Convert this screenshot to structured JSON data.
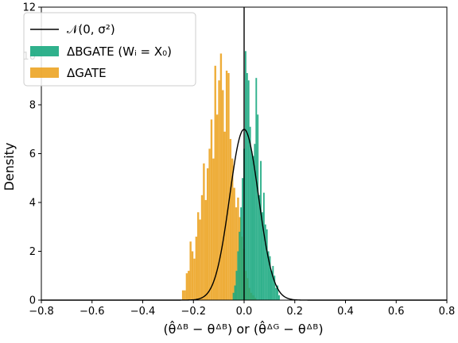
{
  "chart_data": {
    "type": "histogram",
    "xlabel": "(θ̂ᐞᴮ − θᐞᴮ) or (θ̂ᐞᴳ − θᐞᴮ)",
    "ylabel": "Density",
    "xlim": [
      -0.8,
      0.8
    ],
    "ylim": [
      0,
      12
    ],
    "xticks": [
      "−0.8",
      "−0.6",
      "−0.4",
      "−0.2",
      "0.0",
      "0.2",
      "0.4",
      "0.6",
      "0.8"
    ],
    "yticks": [
      "0",
      "2",
      "4",
      "6",
      "8",
      "10",
      "12"
    ],
    "vline_x": 0.0,
    "legend_position": "top-left",
    "legend": {
      "normal": "𝒩(0, σ²)",
      "bgate": "ΔBGATE (Wᵢ = X₀)",
      "gate": "ΔGATE"
    },
    "colors": {
      "bgate": "#1aa97f",
      "gate": "#eb9f16",
      "normal": "#000000"
    },
    "normal_curve": {
      "mean": 0.0,
      "sigma": 0.057
    },
    "series": [
      {
        "name": "ΔGATE",
        "bin_width": 0.0075,
        "bins": [
          [
            -0.245,
            0.4
          ],
          [
            -0.2375,
            0.4
          ],
          [
            -0.23,
            1.1
          ],
          [
            -0.2225,
            1.2
          ],
          [
            -0.215,
            2.4
          ],
          [
            -0.2075,
            2.0
          ],
          [
            -0.2,
            1.7
          ],
          [
            -0.1925,
            2.6
          ],
          [
            -0.185,
            3.6
          ],
          [
            -0.1775,
            3.3
          ],
          [
            -0.17,
            4.3
          ],
          [
            -0.1625,
            5.6
          ],
          [
            -0.155,
            4.1
          ],
          [
            -0.1475,
            5.4
          ],
          [
            -0.14,
            6.2
          ],
          [
            -0.1325,
            7.4
          ],
          [
            -0.125,
            5.8
          ],
          [
            -0.1175,
            9.6
          ],
          [
            -0.11,
            7.6
          ],
          [
            -0.1025,
            9.0
          ],
          [
            -0.095,
            10.1
          ],
          [
            -0.0875,
            8.6
          ],
          [
            -0.08,
            6.9
          ],
          [
            -0.0725,
            9.4
          ],
          [
            -0.065,
            9.3
          ],
          [
            -0.0575,
            6.6
          ],
          [
            -0.05,
            5.8
          ],
          [
            -0.0425,
            4.6
          ],
          [
            -0.035,
            3.8
          ],
          [
            -0.0275,
            4.2
          ],
          [
            -0.02,
            3.4
          ],
          [
            -0.0125,
            2.6
          ],
          [
            -0.005,
            2.1
          ],
          [
            0.0025,
            1.2
          ],
          [
            0.01,
            0.9
          ],
          [
            0.0175,
            0.5
          ],
          [
            0.025,
            0.3
          ],
          [
            0.0325,
            0.2
          ],
          [
            0.04,
            0.1
          ]
        ]
      },
      {
        "name": "ΔBGATE (Wᵢ = X₀)",
        "bin_width": 0.006,
        "bins": [
          [
            -0.045,
            0.3
          ],
          [
            -0.039,
            0.6
          ],
          [
            -0.033,
            1.2
          ],
          [
            -0.027,
            2.0
          ],
          [
            -0.021,
            2.8
          ],
          [
            -0.015,
            3.8
          ],
          [
            -0.009,
            5.0
          ],
          [
            -0.003,
            6.2
          ],
          [
            0.003,
            10.2
          ],
          [
            0.009,
            9.3
          ],
          [
            0.015,
            9.0
          ],
          [
            0.021,
            7.1
          ],
          [
            0.027,
            6.1
          ],
          [
            0.033,
            5.9
          ],
          [
            0.039,
            6.4
          ],
          [
            0.045,
            9.1
          ],
          [
            0.051,
            7.6
          ],
          [
            0.057,
            4.3
          ],
          [
            0.063,
            5.7
          ],
          [
            0.069,
            3.6
          ],
          [
            0.075,
            4.4
          ],
          [
            0.081,
            3.1
          ],
          [
            0.087,
            2.9
          ],
          [
            0.093,
            2.0
          ],
          [
            0.099,
            1.8
          ],
          [
            0.105,
            1.2
          ],
          [
            0.111,
            1.4
          ],
          [
            0.117,
            1.0
          ],
          [
            0.123,
            0.5
          ],
          [
            0.129,
            0.6
          ],
          [
            0.135,
            0.2
          ]
        ]
      }
    ]
  }
}
